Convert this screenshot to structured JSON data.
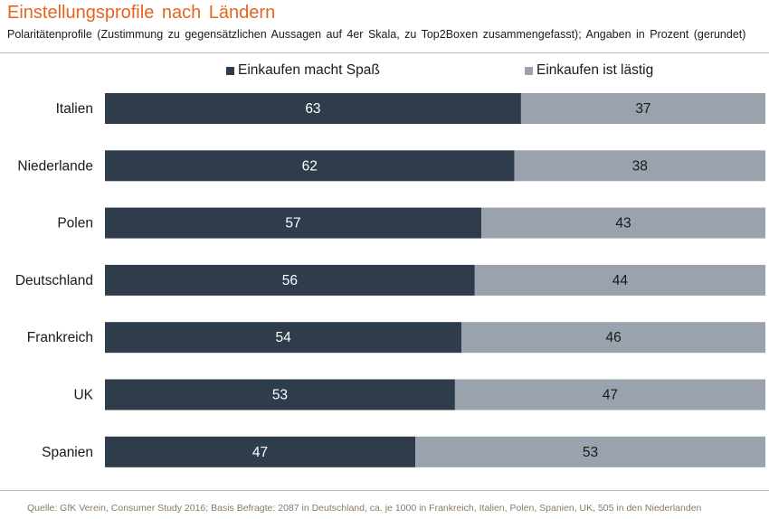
{
  "title": "Einstellungsprofile  nach Ländern",
  "subtitle": "Polaritätenprofile  (Zustimmung zu gegensätzlichen Aussagen auf 4er Skala, zu Top2Boxen  zusammengefasst);  Angaben in Prozent  (gerundet)",
  "source": "Quelle:  GfK Verein, Consumer  Study 2016; Basis Befragte: 2087 in Deutschland, ca. je 1000 in Frankreich, Italien,  Polen,  Spanien, UK, 505 in den Niederlanden",
  "colors": {
    "title": "#e8641e",
    "series1": "#2e3c4c",
    "series2": "#9aa3ad",
    "series1_label": "#ffffff",
    "series2_label": "#1a1a1a"
  },
  "chart_data": {
    "type": "bar",
    "orientation": "horizontal",
    "stacked": true,
    "title": "Einstellungsprofile  nach Ländern",
    "categories": [
      "Italien",
      "Niederlande",
      "Polen",
      "Deutschland",
      "Frankreich",
      "UK",
      "Spanien"
    ],
    "series": [
      {
        "name": "Einkaufen macht Spaß",
        "values": [
          63,
          62,
          57,
          56,
          54,
          53,
          47
        ]
      },
      {
        "name": "Einkaufen ist lästig",
        "values": [
          37,
          38,
          43,
          44,
          46,
          47,
          53
        ]
      }
    ],
    "xlim": [
      0,
      100
    ],
    "xlabel": "",
    "ylabel": "",
    "grid": false,
    "legend_position": "top-center"
  }
}
